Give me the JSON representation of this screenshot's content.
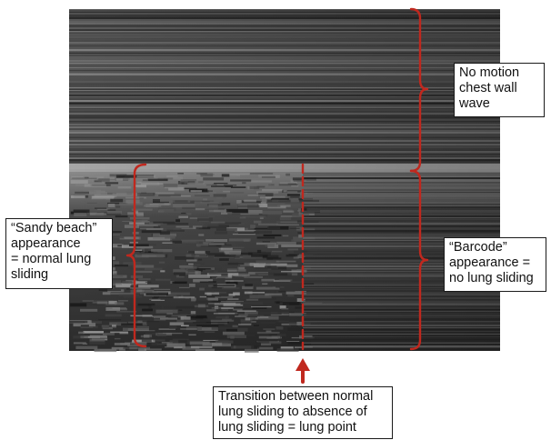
{
  "image": {
    "description_icon": "m-mode-ultrasound-image"
  },
  "annotations": {
    "no_motion": {
      "text": "No motion\nchest wall\nwave"
    },
    "sandy_beach": {
      "text": "“Sandy beach”\nappearance\n= normal lung\nsliding"
    },
    "barcode": {
      "text": "“Barcode”\nappearance =\nno lung sliding"
    },
    "transition": {
      "text": "Transition between normal\nlung sliding to absence of\nlung sliding = lung point"
    }
  },
  "colors": {
    "annotation": "#c0281e",
    "box_border": "#1a1a1a"
  }
}
